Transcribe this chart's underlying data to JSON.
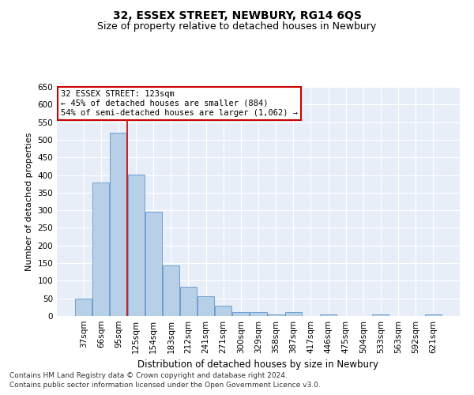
{
  "title": "32, ESSEX STREET, NEWBURY, RG14 6QS",
  "subtitle": "Size of property relative to detached houses in Newbury",
  "xlabel": "Distribution of detached houses by size in Newbury",
  "ylabel": "Number of detached properties",
  "categories": [
    "37sqm",
    "66sqm",
    "95sqm",
    "125sqm",
    "154sqm",
    "183sqm",
    "212sqm",
    "241sqm",
    "271sqm",
    "300sqm",
    "329sqm",
    "358sqm",
    "387sqm",
    "417sqm",
    "446sqm",
    "475sqm",
    "504sqm",
    "533sqm",
    "563sqm",
    "592sqm",
    "621sqm"
  ],
  "values": [
    50,
    378,
    519,
    401,
    295,
    143,
    82,
    55,
    30,
    11,
    11,
    5,
    12,
    0,
    5,
    0,
    0,
    5,
    0,
    0,
    5
  ],
  "bar_color": "#b8cfe8",
  "bar_edge_color": "#6ca0d0",
  "vline_color": "#c00000",
  "annotation_text": "32 ESSEX STREET: 123sqm\n← 45% of detached houses are smaller (884)\n54% of semi-detached houses are larger (1,062) →",
  "annotation_box_facecolor": "#ffffff",
  "annotation_box_edgecolor": "#cc0000",
  "ylim": [
    0,
    650
  ],
  "yticks": [
    0,
    50,
    100,
    150,
    200,
    250,
    300,
    350,
    400,
    450,
    500,
    550,
    600,
    650
  ],
  "grid_color": "#ffffff",
  "background_color": "#e8eef8",
  "footer_line1": "Contains HM Land Registry data © Crown copyright and database right 2024.",
  "footer_line2": "Contains public sector information licensed under the Open Government Licence v3.0.",
  "title_fontsize": 10,
  "subtitle_fontsize": 9,
  "ylabel_fontsize": 8,
  "xlabel_fontsize": 8.5,
  "tick_fontsize": 7.5,
  "ann_fontsize": 7.5,
  "footer_fontsize": 6.5
}
